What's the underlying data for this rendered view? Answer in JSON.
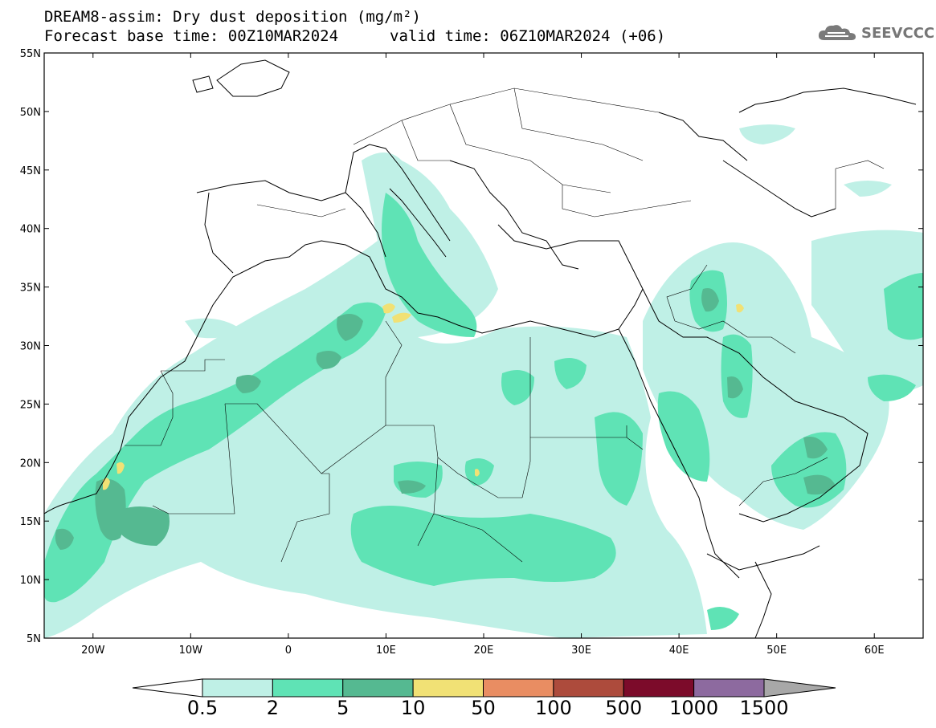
{
  "header": {
    "title_line1": "DREAM8-assim: Dry dust deposition (mg/m²)",
    "title_line2_left": "Forecast base time: 00Z10MAR2024",
    "title_line2_right": "valid time: 06Z10MAR2024 (+06)",
    "logo_text": "SEEVCCC",
    "logo_icon": "cloud-icon"
  },
  "map": {
    "lon_range": [
      -25,
      65
    ],
    "lat_range": [
      5,
      55
    ],
    "lon_ticks": [
      {
        "value": -20,
        "label": "20W"
      },
      {
        "value": -10,
        "label": "10W"
      },
      {
        "value": 0,
        "label": "0"
      },
      {
        "value": 10,
        "label": "10E"
      },
      {
        "value": 20,
        "label": "20E"
      },
      {
        "value": 30,
        "label": "30E"
      },
      {
        "value": 40,
        "label": "40E"
      },
      {
        "value": 50,
        "label": "50E"
      },
      {
        "value": 60,
        "label": "60E"
      }
    ],
    "lat_ticks": [
      {
        "value": 5,
        "label": "5N"
      },
      {
        "value": 10,
        "label": "10N"
      },
      {
        "value": 15,
        "label": "15N"
      },
      {
        "value": 20,
        "label": "20N"
      },
      {
        "value": 25,
        "label": "25N"
      },
      {
        "value": 30,
        "label": "30N"
      },
      {
        "value": 35,
        "label": "35N"
      },
      {
        "value": 40,
        "label": "40N"
      },
      {
        "value": 45,
        "label": "45N"
      },
      {
        "value": 50,
        "label": "50N"
      },
      {
        "value": 55,
        "label": "55N"
      }
    ]
  },
  "colorbar": {
    "labels": [
      "0.5",
      "2",
      "5",
      "10",
      "50",
      "100",
      "500",
      "1000",
      "1500"
    ],
    "colors": [
      "#bff0e6",
      "#5fe3b5",
      "#55b991",
      "#f1e175",
      "#e98d62",
      "#ad4b3c",
      "#7c0b2a",
      "#8d6a9f"
    ],
    "under_color": "#ffffff",
    "over_color": "#a8a8a8"
  }
}
